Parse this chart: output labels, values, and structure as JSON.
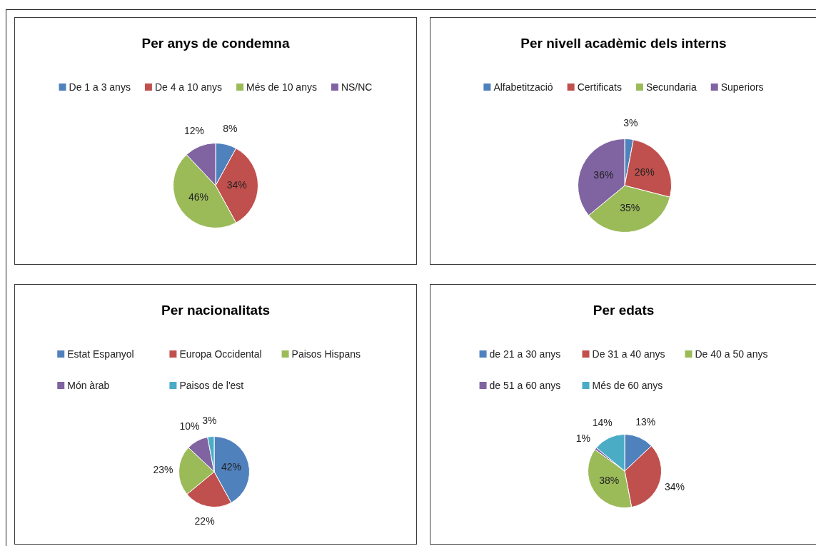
{
  "chart_data": [
    {
      "type": "pie",
      "title": "Per anys de condemna",
      "categories": [
        "De 1 a 3 anys",
        "De 4 a 10 anys",
        "Més de 10 anys",
        "NS/NC"
      ],
      "values": [
        8,
        34,
        46,
        12
      ],
      "colors": [
        "#4f81bd",
        "#c0504d",
        "#9bbb59",
        "#8064a2"
      ],
      "legend": "top",
      "value_labels": [
        "8%",
        "34%",
        "46%",
        "12%"
      ]
    },
    {
      "type": "pie",
      "title": "Per nivell acadèmic dels interns",
      "categories": [
        "Alfabetització",
        "Certificats",
        "Secundaria",
        "Superiors"
      ],
      "values": [
        3,
        26,
        35,
        36
      ],
      "colors": [
        "#4f81bd",
        "#c0504d",
        "#9bbb59",
        "#8064a2"
      ],
      "legend": "top",
      "value_labels": [
        "3%",
        "26%",
        "35%",
        "36%"
      ]
    },
    {
      "type": "pie",
      "title": "Per nacionalitats",
      "categories": [
        "Estat Espanyol",
        "Europa Occidental",
        "Paisos Hispans",
        "Món àrab",
        "Paisos de l'est"
      ],
      "values": [
        42,
        22,
        23,
        10,
        3
      ],
      "colors": [
        "#4f81bd",
        "#c0504d",
        "#9bbb59",
        "#8064a2",
        "#4bacc6"
      ],
      "legend": "top",
      "value_labels": [
        "42%",
        "22%",
        "23%",
        "10%",
        "3%"
      ]
    },
    {
      "type": "pie",
      "title": "Per edats",
      "categories": [
        "de 21 a 30 anys",
        "De 31 a 40 anys",
        "De 40 a 50 anys",
        "de 51 a 60 anys",
        "Més de 60 anys"
      ],
      "values": [
        13,
        34,
        38,
        1,
        14
      ],
      "colors": [
        "#4f81bd",
        "#c0504d",
        "#9bbb59",
        "#8064a2",
        "#4bacc6"
      ],
      "legend": "top",
      "value_labels": [
        "13%",
        "34%",
        "38%",
        "1%",
        "14%"
      ]
    }
  ]
}
